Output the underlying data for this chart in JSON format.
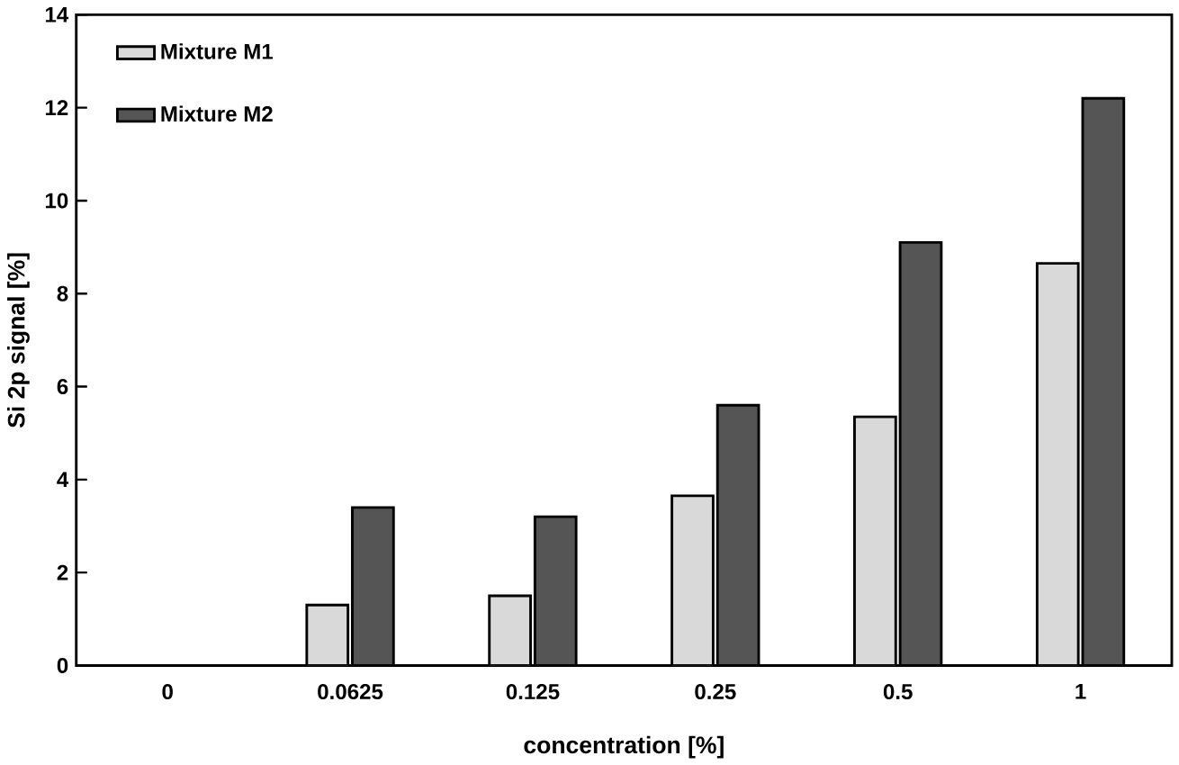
{
  "chart_data": {
    "type": "bar",
    "xlabel": "concentration [%]",
    "ylabel": "Si 2p signal [%]",
    "categories": [
      "0",
      "0.0625",
      "0.125",
      "0.25",
      "0.5",
      "1"
    ],
    "series": [
      {
        "name": "Mixture M1",
        "color": "#d9d9d9",
        "values": [
          null,
          1.3,
          1.5,
          3.65,
          5.35,
          8.65
        ]
      },
      {
        "name": "Mixture M2",
        "color": "#555555",
        "values": [
          null,
          3.4,
          3.2,
          5.6,
          9.1,
          12.2
        ]
      }
    ],
    "ylim": [
      0,
      14
    ],
    "yticks": [
      0,
      2,
      4,
      6,
      8,
      10,
      12,
      14
    ],
    "grid": false,
    "legend": "top left"
  }
}
